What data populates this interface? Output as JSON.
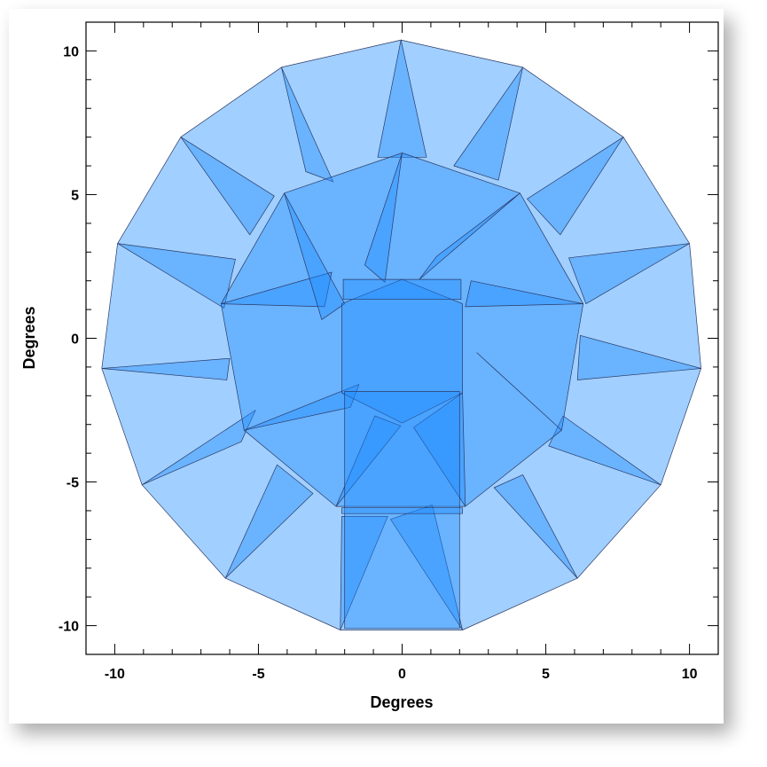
{
  "chart_data": {
    "type": "polygon-overlay",
    "title": "",
    "xlabel": "Degrees",
    "ylabel": "Degrees",
    "xlim": [
      -11,
      11
    ],
    "ylim": [
      -11,
      11
    ],
    "xticks": [
      -10,
      -5,
      0,
      5,
      10
    ],
    "yticks": [
      -10,
      -5,
      0,
      5,
      10
    ],
    "fill_color": "#1e8cff",
    "fill_opacity": 0.42,
    "stroke_color": "#2a3a66",
    "background": "#ffffff",
    "outer_polygon": [
      [
        -0.04,
        10.38
      ],
      [
        4.2,
        9.43
      ],
      [
        7.7,
        7.0
      ],
      [
        10.0,
        3.3
      ],
      [
        10.4,
        -1.05
      ],
      [
        9.0,
        -5.1
      ],
      [
        6.1,
        -8.35
      ],
      [
        2.1,
        -10.15
      ],
      [
        -2.15,
        -10.15
      ],
      [
        -6.15,
        -8.35
      ],
      [
        -9.05,
        -5.1
      ],
      [
        -10.45,
        -1.05
      ],
      [
        -9.9,
        3.3
      ],
      [
        -7.7,
        7.0
      ],
      [
        -4.2,
        9.43
      ]
    ],
    "outer_triangles": [
      [
        [
          -0.04,
          10.38
        ],
        [
          -0.85,
          6.3
        ],
        [
          0.85,
          6.3
        ]
      ],
      [
        [
          4.2,
          9.43
        ],
        [
          1.8,
          6.0
        ],
        [
          3.35,
          5.5
        ]
      ],
      [
        [
          7.7,
          7.0
        ],
        [
          4.35,
          4.85
        ],
        [
          5.5,
          3.6
        ]
      ],
      [
        [
          10.0,
          3.3
        ],
        [
          5.8,
          2.8
        ],
        [
          6.4,
          1.2
        ]
      ],
      [
        [
          10.4,
          -1.05
        ],
        [
          6.2,
          0.1
        ],
        [
          6.1,
          -1.45
        ]
      ],
      [
        [
          9.0,
          -5.1
        ],
        [
          5.1,
          -3.75
        ],
        [
          5.6,
          -2.7
        ]
      ],
      [
        [
          6.1,
          -8.35
        ],
        [
          4.2,
          -4.75
        ],
        [
          3.2,
          -5.2
        ]
      ],
      [
        [
          2.1,
          -10.15
        ],
        [
          1.05,
          -5.8
        ],
        [
          -0.4,
          -6.3
        ]
      ],
      [
        [
          -2.15,
          -10.15
        ],
        [
          -2.1,
          -6.2
        ],
        [
          -0.5,
          -6.2
        ]
      ],
      [
        [
          -6.15,
          -8.35
        ],
        [
          -3.1,
          -5.4
        ],
        [
          -4.35,
          -4.4
        ]
      ],
      [
        [
          -9.05,
          -5.1
        ],
        [
          -5.6,
          -3.6
        ],
        [
          -5.1,
          -2.5
        ]
      ],
      [
        [
          -10.45,
          -1.05
        ],
        [
          -6.0,
          -0.7
        ],
        [
          -6.1,
          -1.45
        ]
      ],
      [
        [
          -9.9,
          3.3
        ],
        [
          -5.8,
          2.75
        ],
        [
          -6.2,
          1.05
        ]
      ],
      [
        [
          -7.7,
          7.0
        ],
        [
          -5.3,
          3.6
        ],
        [
          -4.45,
          4.95
        ]
      ],
      [
        [
          -4.2,
          9.43
        ],
        [
          -2.4,
          5.45
        ],
        [
          -3.35,
          5.8
        ]
      ]
    ],
    "middle_polygon": [
      [
        0.0,
        6.45
      ],
      [
        4.1,
        5.05
      ],
      [
        6.3,
        1.2
      ],
      [
        5.55,
        -3.2
      ],
      [
        2.2,
        -5.85
      ],
      [
        -2.3,
        -5.85
      ],
      [
        -5.5,
        -3.2
      ],
      [
        -6.3,
        1.2
      ],
      [
        -4.1,
        5.05
      ]
    ],
    "middle_triangles": [
      [
        [
          0.0,
          6.45
        ],
        [
          -1.3,
          2.55
        ],
        [
          -0.6,
          1.95
        ]
      ],
      [
        [
          4.1,
          5.05
        ],
        [
          0.6,
          2.05
        ],
        [
          1.2,
          2.85
        ]
      ],
      [
        [
          6.3,
          1.2
        ],
        [
          2.2,
          1.1
        ],
        [
          2.4,
          2.0
        ]
      ],
      [
        [
          5.55,
          -3.2
        ],
        [
          2.6,
          -0.5
        ],
        [
          3.25,
          -1.1
        ]
      ],
      [
        [
          2.2,
          -5.85
        ],
        [
          2.1,
          -1.9
        ],
        [
          0.4,
          -3.1
        ]
      ],
      [
        [
          -2.3,
          -5.85
        ],
        [
          -0.05,
          -3.05
        ],
        [
          -0.95,
          -2.7
        ]
      ],
      [
        [
          -5.5,
          -3.2
        ],
        [
          -1.8,
          -2.4
        ],
        [
          -1.5,
          -1.6
        ]
      ],
      [
        [
          -6.3,
          1.2
        ],
        [
          -2.45,
          2.3
        ],
        [
          -2.7,
          1.1
        ]
      ],
      [
        [
          -4.1,
          5.05
        ],
        [
          -2.8,
          0.65
        ],
        [
          -2.0,
          1.2
        ]
      ]
    ],
    "inner_polygon": [
      [
        0.0,
        2.05
      ],
      [
        2.1,
        1.2
      ],
      [
        2.1,
        -1.9
      ],
      [
        0.0,
        -2.95
      ],
      [
        -2.1,
        -1.9
      ],
      [
        -2.1,
        1.2
      ]
    ],
    "rectangles": [
      [
        [
          -2.05,
          2.05
        ],
        [
          2.05,
          2.05
        ],
        [
          2.05,
          1.35
        ],
        [
          -2.05,
          1.35
        ]
      ],
      [
        [
          -2.0,
          -1.85
        ],
        [
          2.0,
          -1.85
        ],
        [
          2.0,
          -10.1
        ],
        [
          -2.0,
          -10.1
        ]
      ],
      [
        [
          -2.1,
          -5.9
        ],
        [
          2.1,
          -5.9
        ],
        [
          2.1,
          -6.1
        ],
        [
          -2.1,
          -6.1
        ]
      ]
    ]
  }
}
